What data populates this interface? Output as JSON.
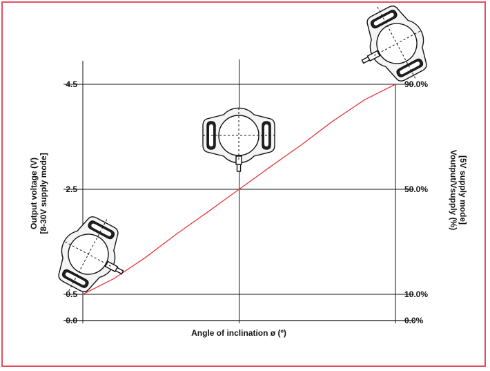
{
  "chart_data": {
    "type": "line",
    "xlabel": "Angle of inclination ø (º)",
    "ylabel": [
      "Output voltage (V)",
      "[8-30V supply mode]"
    ],
    "y2label": [
      "Voutput/Vsupply (%)",
      "[5V supply mode]"
    ],
    "ylim": [
      0,
      4.5
    ],
    "y_ticks": [
      {
        "value": 0.0,
        "label": "0.0",
        "right_label": "0.0%"
      },
      {
        "value": 0.5,
        "label": "0.5",
        "right_label": "10.0%"
      },
      {
        "value": 2.5,
        "label": "2.5",
        "right_label": "50.0%"
      },
      {
        "value": 4.5,
        "label": "4.5",
        "right_label": "90.0%"
      }
    ],
    "xlim": [
      0,
      1
    ],
    "x_gridlines": [
      0,
      0.5,
      1
    ],
    "series": [
      {
        "color": "#e8343a",
        "x": [
          0,
          0.1,
          0.2,
          0.3,
          0.4,
          0.5,
          0.6,
          0.7,
          0.8,
          0.9,
          1.0
        ],
        "values": [
          0.5,
          0.8,
          1.2,
          1.65,
          2.07,
          2.5,
          2.93,
          3.35,
          3.8,
          4.2,
          4.5
        ]
      }
    ],
    "illustrations": [
      "sensor-tilted-left",
      "sensor-level",
      "sensor-tilted-right"
    ],
    "frame_color": "#e05060",
    "grid": true
  }
}
